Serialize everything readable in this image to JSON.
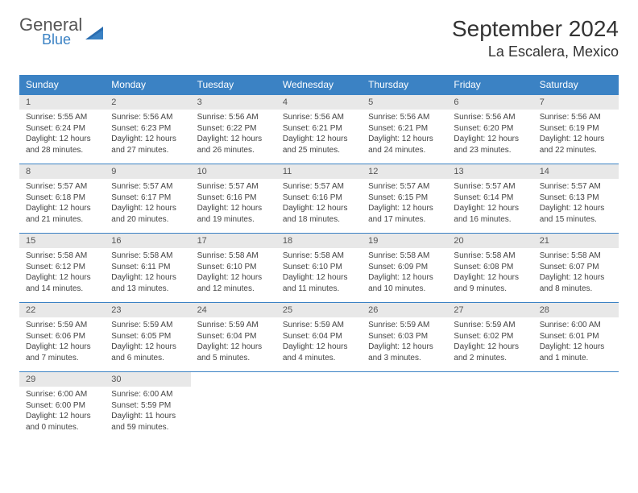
{
  "logo": {
    "general": "General",
    "blue": "Blue"
  },
  "title": "September 2024",
  "location": "La Escalera, Mexico",
  "colors": {
    "header_bg": "#3b82c4",
    "daynum_bg": "#e8e8e8",
    "border": "#3b82c4"
  },
  "dayHeaders": [
    "Sunday",
    "Monday",
    "Tuesday",
    "Wednesday",
    "Thursday",
    "Friday",
    "Saturday"
  ],
  "weeks": [
    [
      {
        "n": "1",
        "sr": "5:55 AM",
        "ss": "6:24 PM",
        "dl": "12 hours and 28 minutes."
      },
      {
        "n": "2",
        "sr": "5:56 AM",
        "ss": "6:23 PM",
        "dl": "12 hours and 27 minutes."
      },
      {
        "n": "3",
        "sr": "5:56 AM",
        "ss": "6:22 PM",
        "dl": "12 hours and 26 minutes."
      },
      {
        "n": "4",
        "sr": "5:56 AM",
        "ss": "6:21 PM",
        "dl": "12 hours and 25 minutes."
      },
      {
        "n": "5",
        "sr": "5:56 AM",
        "ss": "6:21 PM",
        "dl": "12 hours and 24 minutes."
      },
      {
        "n": "6",
        "sr": "5:56 AM",
        "ss": "6:20 PM",
        "dl": "12 hours and 23 minutes."
      },
      {
        "n": "7",
        "sr": "5:56 AM",
        "ss": "6:19 PM",
        "dl": "12 hours and 22 minutes."
      }
    ],
    [
      {
        "n": "8",
        "sr": "5:57 AM",
        "ss": "6:18 PM",
        "dl": "12 hours and 21 minutes."
      },
      {
        "n": "9",
        "sr": "5:57 AM",
        "ss": "6:17 PM",
        "dl": "12 hours and 20 minutes."
      },
      {
        "n": "10",
        "sr": "5:57 AM",
        "ss": "6:16 PM",
        "dl": "12 hours and 19 minutes."
      },
      {
        "n": "11",
        "sr": "5:57 AM",
        "ss": "6:16 PM",
        "dl": "12 hours and 18 minutes."
      },
      {
        "n": "12",
        "sr": "5:57 AM",
        "ss": "6:15 PM",
        "dl": "12 hours and 17 minutes."
      },
      {
        "n": "13",
        "sr": "5:57 AM",
        "ss": "6:14 PM",
        "dl": "12 hours and 16 minutes."
      },
      {
        "n": "14",
        "sr": "5:57 AM",
        "ss": "6:13 PM",
        "dl": "12 hours and 15 minutes."
      }
    ],
    [
      {
        "n": "15",
        "sr": "5:58 AM",
        "ss": "6:12 PM",
        "dl": "12 hours and 14 minutes."
      },
      {
        "n": "16",
        "sr": "5:58 AM",
        "ss": "6:11 PM",
        "dl": "12 hours and 13 minutes."
      },
      {
        "n": "17",
        "sr": "5:58 AM",
        "ss": "6:10 PM",
        "dl": "12 hours and 12 minutes."
      },
      {
        "n": "18",
        "sr": "5:58 AM",
        "ss": "6:10 PM",
        "dl": "12 hours and 11 minutes."
      },
      {
        "n": "19",
        "sr": "5:58 AM",
        "ss": "6:09 PM",
        "dl": "12 hours and 10 minutes."
      },
      {
        "n": "20",
        "sr": "5:58 AM",
        "ss": "6:08 PM",
        "dl": "12 hours and 9 minutes."
      },
      {
        "n": "21",
        "sr": "5:58 AM",
        "ss": "6:07 PM",
        "dl": "12 hours and 8 minutes."
      }
    ],
    [
      {
        "n": "22",
        "sr": "5:59 AM",
        "ss": "6:06 PM",
        "dl": "12 hours and 7 minutes."
      },
      {
        "n": "23",
        "sr": "5:59 AM",
        "ss": "6:05 PM",
        "dl": "12 hours and 6 minutes."
      },
      {
        "n": "24",
        "sr": "5:59 AM",
        "ss": "6:04 PM",
        "dl": "12 hours and 5 minutes."
      },
      {
        "n": "25",
        "sr": "5:59 AM",
        "ss": "6:04 PM",
        "dl": "12 hours and 4 minutes."
      },
      {
        "n": "26",
        "sr": "5:59 AM",
        "ss": "6:03 PM",
        "dl": "12 hours and 3 minutes."
      },
      {
        "n": "27",
        "sr": "5:59 AM",
        "ss": "6:02 PM",
        "dl": "12 hours and 2 minutes."
      },
      {
        "n": "28",
        "sr": "6:00 AM",
        "ss": "6:01 PM",
        "dl": "12 hours and 1 minute."
      }
    ],
    [
      {
        "n": "29",
        "sr": "6:00 AM",
        "ss": "6:00 PM",
        "dl": "12 hours and 0 minutes."
      },
      {
        "n": "30",
        "sr": "6:00 AM",
        "ss": "5:59 PM",
        "dl": "11 hours and 59 minutes."
      },
      null,
      null,
      null,
      null,
      null
    ]
  ],
  "labels": {
    "sunrise": "Sunrise: ",
    "sunset": "Sunset: ",
    "daylight": "Daylight: "
  }
}
